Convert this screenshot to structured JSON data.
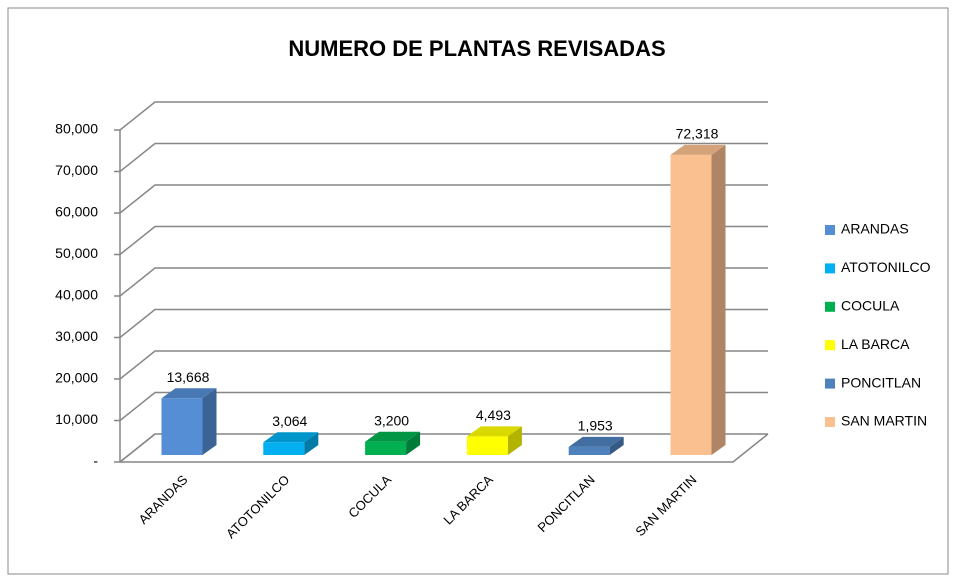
{
  "chart_data": {
    "type": "bar3d",
    "title": "NUMERO DE PLANTAS REVISADAS",
    "categories": [
      "ARANDAS",
      "ATOTONILCO",
      "COCULA",
      "LA BARCA",
      "PONCITLAN",
      "SAN MARTIN"
    ],
    "values": [
      13668,
      3064,
      3200,
      4493,
      1953,
      72318
    ],
    "value_labels": [
      "13,668",
      "3,064",
      "3,200",
      "4,493",
      "1,953",
      "72,318"
    ],
    "colors": [
      "#558ed5",
      "#00b0f0",
      "#00b050",
      "#ffff00",
      "#4f81bd",
      "#fac090"
    ],
    "ylim": [
      0,
      80000
    ],
    "yticks": [
      {
        "value": 0,
        "label": "-"
      },
      {
        "value": 10000,
        "label": "10,000"
      },
      {
        "value": 20000,
        "label": "20,000"
      },
      {
        "value": 30000,
        "label": "30,000"
      },
      {
        "value": 40000,
        "label": "40,000"
      },
      {
        "value": 50000,
        "label": "50,000"
      },
      {
        "value": 60000,
        "label": "60,000"
      },
      {
        "value": 70000,
        "label": "70,000"
      },
      {
        "value": 80000,
        "label": "80,000"
      }
    ],
    "grid": true,
    "legend": "right"
  }
}
